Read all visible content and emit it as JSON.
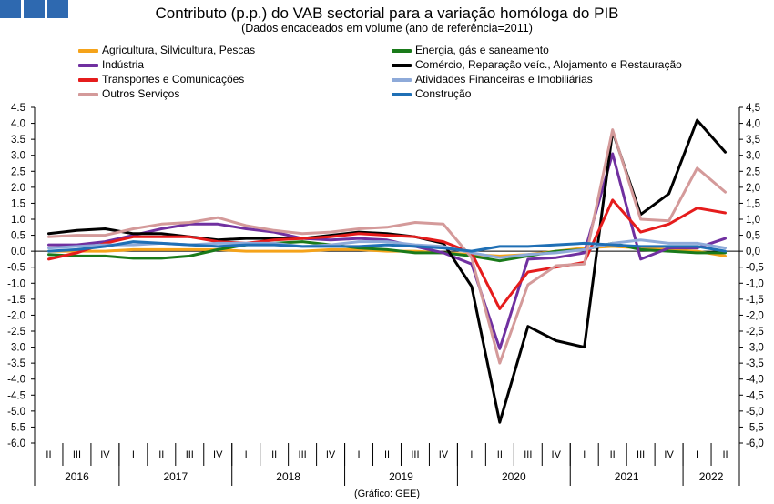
{
  "title": "Contributo (p.p.) do VAB sectorial para a variação homóloga do PIB",
  "subtitle": "(Dados encadeados em volume (ano de referência=2011)",
  "source": "(Gráfico: GEE)",
  "logo_color": "#2e69b0",
  "chart_data": {
    "type": "line",
    "title": "Contributo (p.p.) do VAB sectorial para a variação homóloga do PIB",
    "ylim": [
      -6.0,
      4.5
    ],
    "ytick_step": 0.5,
    "yticks_left": [
      "4.5",
      "4.0",
      "3.5",
      "3.0",
      "2.5",
      "2.0",
      "1.5",
      "1.0",
      "0.5",
      "0.0",
      "-0.5",
      "-1.0",
      "-1.5",
      "-2.0",
      "-2.5",
      "-3.0",
      "-3.5",
      "-4.0",
      "-4.5",
      "-5.0",
      "-5.5",
      "-6.0"
    ],
    "yticks_right": [
      "4,5",
      "4,0",
      "3,5",
      "3,0",
      "2,5",
      "2,0",
      "1,5",
      "1,0",
      "0,5",
      "0,0",
      "-0,5",
      "-1,0",
      "-1,5",
      "-2,0",
      "-2,5",
      "-3,0",
      "-3,5",
      "-4,0",
      "-4,5",
      "-5,0",
      "-5,5",
      "-6,0"
    ],
    "grid": false,
    "legend_position": "top",
    "categories": [
      "II",
      "III",
      "IV",
      "I",
      "II",
      "III",
      "IV",
      "I",
      "II",
      "III",
      "IV",
      "I",
      "II",
      "III",
      "IV",
      "I",
      "II",
      "III",
      "IV",
      "I",
      "II",
      "III",
      "IV",
      "I",
      "II"
    ],
    "years": [
      {
        "label": "2016",
        "count": 3
      },
      {
        "label": "2017",
        "count": 4
      },
      {
        "label": "2018",
        "count": 4
      },
      {
        "label": "2019",
        "count": 4
      },
      {
        "label": "2020",
        "count": 4
      },
      {
        "label": "2021",
        "count": 4
      },
      {
        "label": "2022",
        "count": 2
      }
    ],
    "series": [
      {
        "name": "Agricultura, Silvicultura, Pescas",
        "color": "#f5a31a",
        "values": [
          0.0,
          0.0,
          0.0,
          0.05,
          0.05,
          0.05,
          0.05,
          0.0,
          0.0,
          0.0,
          0.05,
          0.05,
          0.0,
          0.0,
          -0.05,
          -0.1,
          -0.15,
          -0.1,
          0.0,
          0.1,
          0.15,
          0.1,
          0.05,
          0.0,
          -0.15
        ]
      },
      {
        "name": "Energia, gás e saneamento",
        "color": "#1a7a1a",
        "values": [
          -0.1,
          -0.15,
          -0.15,
          -0.22,
          -0.22,
          -0.15,
          0.05,
          0.2,
          0.25,
          0.3,
          0.2,
          0.1,
          0.05,
          -0.05,
          -0.05,
          -0.15,
          -0.3,
          -0.15,
          0.0,
          0.05,
          0.25,
          0.05,
          0.0,
          -0.05,
          -0.05
        ]
      },
      {
        "name": "Indústria",
        "color": "#7030a0",
        "values": [
          0.2,
          0.2,
          0.3,
          0.5,
          0.7,
          0.85,
          0.85,
          0.7,
          0.6,
          0.4,
          0.35,
          0.4,
          0.35,
          0.15,
          -0.05,
          -0.4,
          -3.05,
          -0.25,
          -0.2,
          -0.05,
          3.05,
          -0.25,
          0.1,
          0.1,
          0.4
        ]
      },
      {
        "name": "Comércio, Reparação veíc., Alojamento e Restauração",
        "color": "#000000",
        "values": [
          0.55,
          0.65,
          0.7,
          0.55,
          0.55,
          0.45,
          0.35,
          0.4,
          0.4,
          0.4,
          0.5,
          0.6,
          0.55,
          0.45,
          0.25,
          -1.1,
          -5.35,
          -2.35,
          -2.8,
          -3.0,
          3.75,
          1.15,
          1.8,
          4.1,
          3.1
        ]
      },
      {
        "name": "Transportes e Comunicações",
        "color": "#e51c1c",
        "values": [
          -0.25,
          -0.05,
          0.25,
          0.45,
          0.45,
          0.45,
          0.3,
          0.25,
          0.35,
          0.4,
          0.45,
          0.55,
          0.5,
          0.45,
          0.3,
          -0.05,
          -1.8,
          -0.65,
          -0.5,
          -0.35,
          1.6,
          0.6,
          0.85,
          1.35,
          1.2
        ]
      },
      {
        "name": "Atividades Financeiras e Imobiliárias",
        "color": "#8eaad9",
        "values": [
          0.1,
          0.15,
          0.2,
          0.2,
          0.25,
          0.2,
          0.25,
          0.25,
          0.25,
          0.15,
          0.2,
          0.3,
          0.3,
          0.2,
          0.15,
          -0.05,
          -0.2,
          -0.1,
          -0.05,
          0.05,
          0.25,
          0.35,
          0.25,
          0.25,
          0.1
        ]
      },
      {
        "name": "Outros Serviços",
        "color": "#d49a9a",
        "values": [
          0.45,
          0.5,
          0.5,
          0.7,
          0.85,
          0.9,
          1.05,
          0.8,
          0.65,
          0.55,
          0.6,
          0.7,
          0.75,
          0.9,
          0.85,
          -0.2,
          -3.5,
          -1.05,
          -0.45,
          -0.4,
          3.8,
          1.0,
          0.95,
          2.6,
          1.85
        ]
      },
      {
        "name": "Construção",
        "color": "#1f6fb5",
        "values": [
          0.0,
          0.05,
          0.15,
          0.3,
          0.25,
          0.2,
          0.15,
          0.2,
          0.2,
          0.15,
          0.15,
          0.15,
          0.2,
          0.15,
          0.1,
          0.0,
          0.15,
          0.15,
          0.2,
          0.25,
          0.2,
          0.15,
          0.15,
          0.15,
          0.0
        ]
      }
    ]
  }
}
